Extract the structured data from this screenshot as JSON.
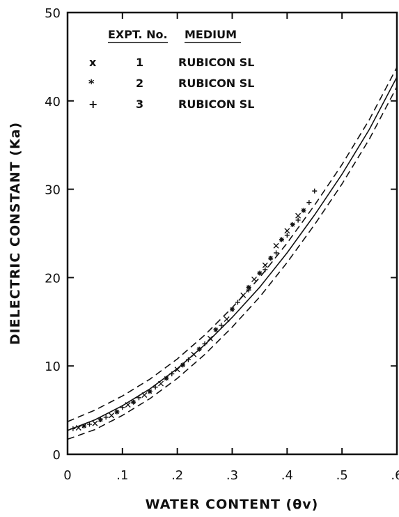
{
  "chart_data": {
    "type": "scatter",
    "title": "",
    "xlabel": "WATER CONTENT (θv)",
    "ylabel": "DIELECTRIC CONSTANT (Ka)",
    "xlim": [
      0,
      0.6
    ],
    "ylim": [
      0,
      50
    ],
    "x_ticks": [
      0,
      0.1,
      0.2,
      0.3,
      0.4,
      0.5,
      0.6
    ],
    "x_tick_labels": [
      "0",
      ".1",
      ".2",
      ".3",
      ".4",
      ".5",
      ".6"
    ],
    "y_ticks": [
      0,
      10,
      20,
      30,
      40,
      50
    ],
    "y_tick_labels": [
      "0",
      "10",
      "20",
      "30",
      "40",
      "50"
    ],
    "grid": false,
    "legend": {
      "placement": "top-left",
      "header": {
        "expt": "EXPT. No.",
        "medium": "MEDIUM"
      },
      "rows": [
        {
          "symbol": "x",
          "expt": "1",
          "medium": "RUBICON SL"
        },
        {
          "symbol": "*",
          "expt": "2",
          "medium": "RUBICON SL"
        },
        {
          "symbol": "+",
          "expt": "3",
          "medium": "RUBICON SL"
        }
      ]
    },
    "series": [
      {
        "name": "1",
        "marker": "x",
        "points": [
          [
            0.02,
            3.0
          ],
          [
            0.05,
            3.5
          ],
          [
            0.08,
            4.4
          ],
          [
            0.11,
            5.6
          ],
          [
            0.14,
            6.7
          ],
          [
            0.17,
            8.0
          ],
          [
            0.2,
            9.6
          ],
          [
            0.23,
            11.3
          ],
          [
            0.26,
            13.1
          ],
          [
            0.29,
            15.3
          ],
          [
            0.32,
            18.0
          ],
          [
            0.34,
            19.8
          ],
          [
            0.36,
            21.4
          ],
          [
            0.38,
            23.6
          ],
          [
            0.4,
            25.3
          ],
          [
            0.42,
            27.0
          ]
        ]
      },
      {
        "name": "2",
        "marker": "*",
        "points": [
          [
            0.03,
            3.2
          ],
          [
            0.06,
            3.9
          ],
          [
            0.09,
            4.8
          ],
          [
            0.12,
            5.9
          ],
          [
            0.15,
            7.1
          ],
          [
            0.18,
            8.6
          ],
          [
            0.21,
            10.1
          ],
          [
            0.24,
            11.9
          ],
          [
            0.27,
            14.1
          ],
          [
            0.3,
            16.4
          ],
          [
            0.33,
            18.9
          ],
          [
            0.35,
            20.5
          ],
          [
            0.37,
            22.2
          ],
          [
            0.39,
            24.3
          ],
          [
            0.41,
            26.0
          ],
          [
            0.43,
            27.6
          ]
        ]
      },
      {
        "name": "3",
        "marker": "+",
        "points": [
          [
            0.01,
            2.9
          ],
          [
            0.04,
            3.4
          ],
          [
            0.07,
            4.2
          ],
          [
            0.1,
            5.3
          ],
          [
            0.13,
            6.4
          ],
          [
            0.16,
            7.6
          ],
          [
            0.19,
            9.1
          ],
          [
            0.22,
            10.7
          ],
          [
            0.25,
            12.5
          ],
          [
            0.28,
            14.6
          ],
          [
            0.31,
            17.2
          ],
          [
            0.33,
            18.6
          ],
          [
            0.36,
            20.9
          ],
          [
            0.38,
            22.8
          ],
          [
            0.4,
            24.8
          ],
          [
            0.42,
            26.5
          ],
          [
            0.44,
            28.5
          ],
          [
            0.45,
            29.8
          ]
        ]
      }
    ],
    "fit_line": {
      "style": "solid",
      "x": [
        0.0,
        0.05,
        0.1,
        0.15,
        0.2,
        0.25,
        0.3,
        0.35,
        0.4,
        0.45,
        0.5,
        0.55,
        0.6
      ],
      "y": [
        2.7,
        3.9,
        5.5,
        7.4,
        9.7,
        12.4,
        15.5,
        18.9,
        22.8,
        27.1,
        31.7,
        36.8,
        42.7
      ]
    },
    "bounds": [
      {
        "style": "dashed",
        "x": [
          0.0,
          0.05,
          0.1,
          0.15,
          0.2,
          0.25,
          0.3,
          0.35,
          0.4,
          0.45,
          0.5,
          0.55,
          0.6
        ],
        "y": [
          3.7,
          5.0,
          6.6,
          8.5,
          10.8,
          13.5,
          16.6,
          20.0,
          23.9,
          28.2,
          32.8,
          37.9,
          43.8
        ]
      },
      {
        "style": "dashed",
        "x": [
          0.0,
          0.05,
          0.1,
          0.15,
          0.2,
          0.25,
          0.3,
          0.35,
          0.4,
          0.45,
          0.5,
          0.55,
          0.6
        ],
        "y": [
          1.7,
          2.8,
          4.4,
          6.3,
          8.6,
          11.3,
          14.4,
          17.8,
          21.7,
          26.0,
          30.6,
          35.7,
          41.6
        ]
      }
    ]
  }
}
